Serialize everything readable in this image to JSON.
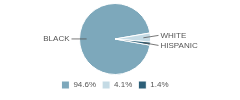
{
  "chart_data": {
    "type": "pie",
    "categories": [
      "BLACK",
      "WHITE",
      "HISPANIC"
    ],
    "values": [
      94.6,
      4.1,
      1.4
    ],
    "value_labels": [
      "94.6%",
      "4.1%",
      "1.4%"
    ],
    "colors": [
      "#7da8bb",
      "#c5dbe5",
      "#2d5f78"
    ],
    "legend": "bottom"
  }
}
